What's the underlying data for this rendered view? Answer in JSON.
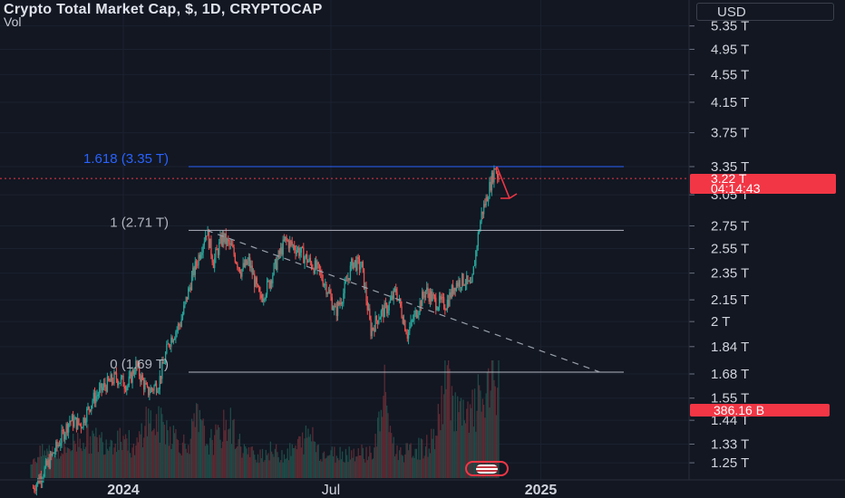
{
  "header": {
    "title": "Crypto Total Market Cap, $, 1D, CRYPTOCAP",
    "vol_label": "Vol"
  },
  "currency_button": "USD",
  "price_tag": {
    "price": "3.22 T",
    "countdown": "04:14:43"
  },
  "volume_tag": "386.16 B",
  "colors": {
    "up": "#26a69a",
    "down": "#ef5350",
    "accent": "#f23645",
    "fib_blue": "#2962ff",
    "background": "#121722"
  },
  "icons": {
    "event_badge": "us-flag-icon"
  },
  "chart_data": {
    "type": "candlestick",
    "title": "Crypto Total Market Cap, $, 1D, CRYPTOCAP",
    "y_axis": {
      "scale": "log",
      "tick_labels": [
        "5.35 T",
        "4.95 T",
        "4.55 T",
        "4.15 T",
        "3.75 T",
        "3.35 T",
        "3.05 T",
        "2.75 T",
        "2.55 T",
        "2.35 T",
        "2.15 T",
        "2 T",
        "1.84 T",
        "1.68 T",
        "1.55 T",
        "1.44 T",
        "1.33 T",
        "1.25 T"
      ],
      "tick_values": [
        5.35,
        4.95,
        4.55,
        4.15,
        3.75,
        3.35,
        3.05,
        2.75,
        2.55,
        2.35,
        2.15,
        2.0,
        1.84,
        1.68,
        1.55,
        1.44,
        1.33,
        1.25
      ],
      "range": [
        1.22,
        5.45
      ]
    },
    "x_axis": {
      "tick_labels": [
        "2024",
        "Jul",
        "2025"
      ],
      "tick_values": [
        "2024-01-01",
        "2024-07-01",
        "2025-01-01"
      ],
      "range": [
        "2023-10-12",
        "2025-03-10"
      ]
    },
    "fib_levels": [
      {
        "label": "1.618 (3.35 T)",
        "value": 3.35
      },
      {
        "label": "1 (2.71 T)",
        "value": 2.71
      },
      {
        "label": "0 (1.69 T)",
        "value": 1.69
      }
    ],
    "trendline": {
      "start": {
        "date": "2024-03-14",
        "value": 2.71
      },
      "end": {
        "date": "2025-02-22",
        "value": 1.69
      }
    },
    "current_price": 3.22,
    "last_volume": "386.16 B",
    "series": [
      {
        "type": "candlestick",
        "points": [
          [
            "2023-10-14",
            1.15
          ],
          [
            "2023-10-24",
            1.22
          ],
          [
            "2023-11-05",
            1.33
          ],
          [
            "2023-11-15",
            1.44
          ],
          [
            "2023-11-25",
            1.42
          ],
          [
            "2023-12-05",
            1.54
          ],
          [
            "2023-12-15",
            1.61
          ],
          [
            "2023-12-25",
            1.66
          ],
          [
            "2024-01-05",
            1.62
          ],
          [
            "2024-01-12",
            1.73
          ],
          [
            "2024-01-22",
            1.58
          ],
          [
            "2024-02-01",
            1.63
          ],
          [
            "2024-02-10",
            1.87
          ],
          [
            "2024-02-20",
            1.99
          ],
          [
            "2024-03-01",
            2.31
          ],
          [
            "2024-03-14",
            2.71
          ],
          [
            "2024-03-20",
            2.44
          ],
          [
            "2024-03-28",
            2.65
          ],
          [
            "2024-04-05",
            2.55
          ],
          [
            "2024-04-13",
            2.37
          ],
          [
            "2024-04-20",
            2.44
          ],
          [
            "2024-04-30",
            2.15
          ],
          [
            "2024-05-08",
            2.28
          ],
          [
            "2024-05-16",
            2.48
          ],
          [
            "2024-05-22",
            2.62
          ],
          [
            "2024-06-01",
            2.55
          ],
          [
            "2024-06-12",
            2.44
          ],
          [
            "2024-06-20",
            2.37
          ],
          [
            "2024-06-28",
            2.23
          ],
          [
            "2024-07-05",
            2.06
          ],
          [
            "2024-07-12",
            2.2
          ],
          [
            "2024-07-20",
            2.44
          ],
          [
            "2024-07-28",
            2.4
          ],
          [
            "2024-08-05",
            1.94
          ],
          [
            "2024-08-12",
            2.04
          ],
          [
            "2024-08-20",
            2.1
          ],
          [
            "2024-08-27",
            2.22
          ],
          [
            "2024-09-06",
            1.92
          ],
          [
            "2024-09-14",
            2.07
          ],
          [
            "2024-09-22",
            2.22
          ],
          [
            "2024-10-01",
            2.13
          ],
          [
            "2024-10-10",
            2.12
          ],
          [
            "2024-10-18",
            2.27
          ],
          [
            "2024-10-26",
            2.3
          ],
          [
            "2024-11-01",
            2.23
          ],
          [
            "2024-11-06",
            2.6
          ],
          [
            "2024-11-10",
            2.86
          ],
          [
            "2024-11-14",
            3.0
          ],
          [
            "2024-11-22",
            3.35
          ],
          [
            "2024-11-25",
            3.22
          ]
        ]
      },
      {
        "name": "Vol",
        "type": "volume",
        "x_range": [
          "2023-10-12",
          "2024-11-25"
        ],
        "values": [
          64,
          90,
          101,
          100,
          125,
          148,
          140,
          137,
          142,
          160,
          90,
          216,
          195,
          190,
          147,
          115,
          214,
          128,
          148,
          210,
          128,
          87,
          90,
          98,
          88,
          96,
          130,
          165,
          85,
          88,
          91,
          96,
          93,
          95,
          310,
          100,
          92,
          105,
          112,
          160,
          385,
          240,
          205,
          275,
          298,
          386
        ]
      }
    ]
  }
}
